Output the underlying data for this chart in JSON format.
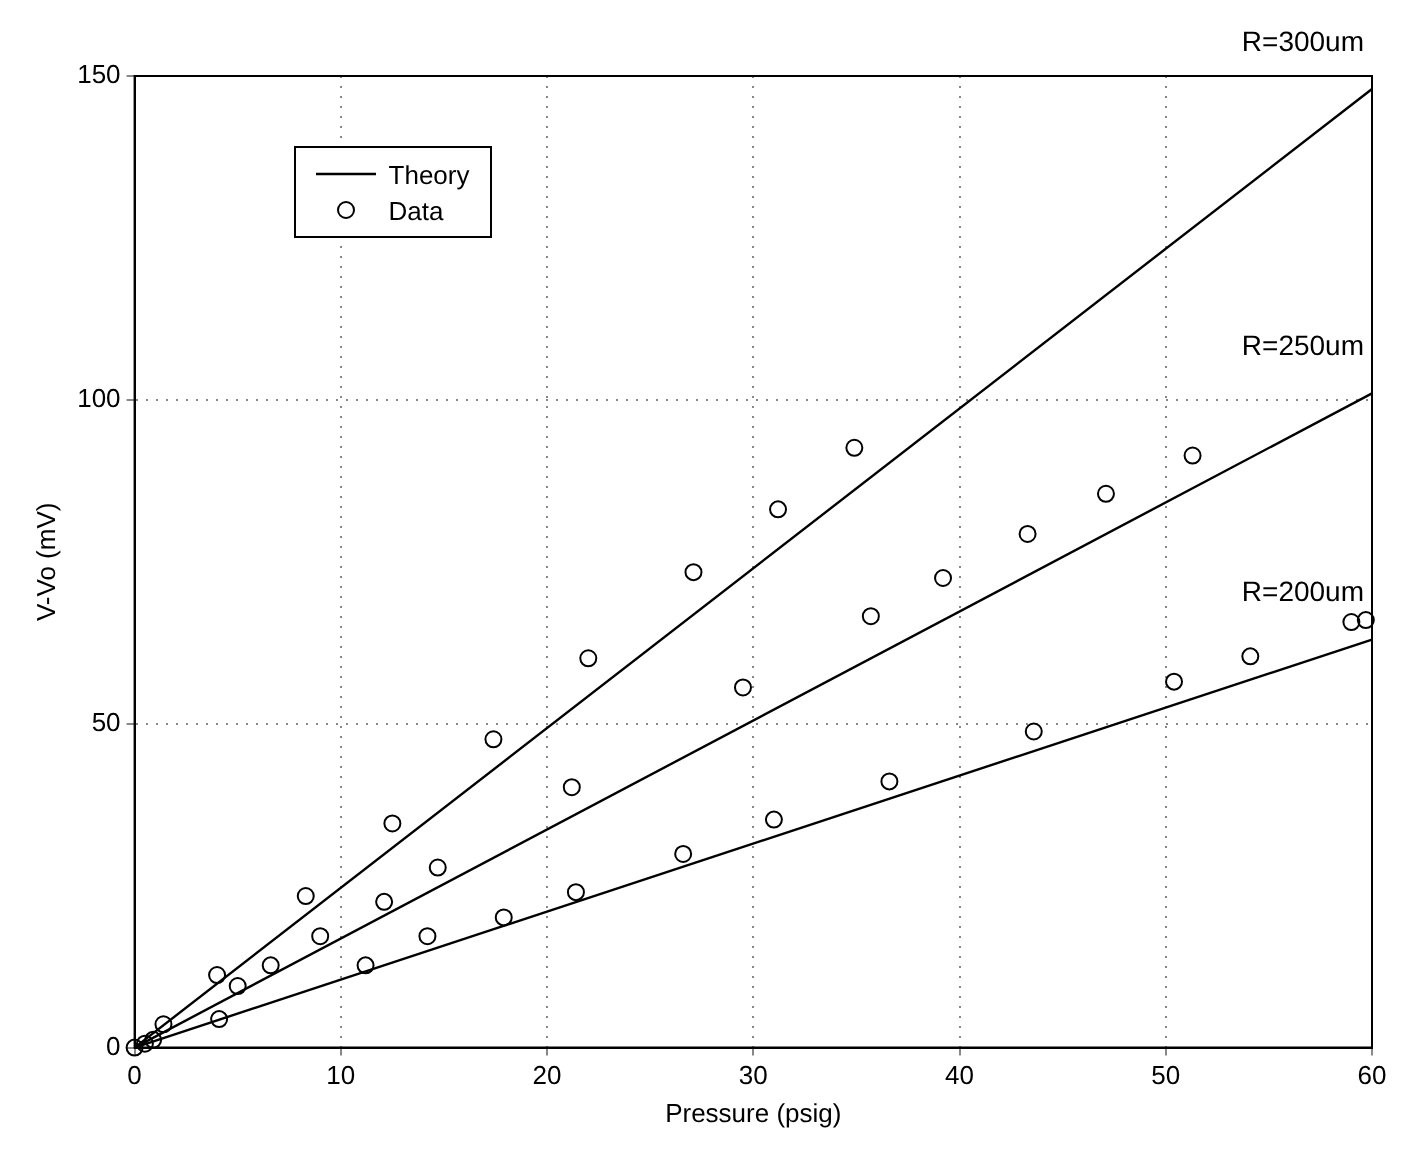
{
  "chart_data": {
    "type": "line",
    "xlabel": "Pressure (psig)",
    "ylabel": "V-Vo (mV)",
    "xlim": [
      0,
      60
    ],
    "xticks": [
      0,
      10,
      20,
      30,
      40,
      50,
      60
    ],
    "ylim": [
      0,
      150
    ],
    "yticks": [
      0,
      50,
      100,
      150
    ],
    "grid": true,
    "legend": "top left",
    "series": [
      {
        "name": "Theory",
        "type": "line",
        "color": "#000000",
        "marker": "none",
        "line_style": "solid",
        "x": [
          0,
          60
        ],
        "values": [
          0,
          148
        ]
      },
      {
        "type": "line",
        "color": "#000000",
        "marker": "none",
        "line_style": "solid",
        "x": [
          0,
          60
        ],
        "values": [
          0,
          101
        ]
      },
      {
        "type": "line",
        "color": "#000000",
        "marker": "none",
        "line_style": "solid",
        "x": [
          0,
          60
        ],
        "values": [
          0,
          63
        ]
      },
      {
        "name": "Data",
        "type": "scatter",
        "color": "#000000",
        "marker": "circle",
        "x": [
          0,
          0.5,
          0.9,
          1.4,
          4.0,
          4.1,
          5.0,
          6.6,
          8.3,
          9.0,
          11.2,
          12.1,
          12.5,
          14.2,
          14.7,
          17.4,
          17.9,
          21.2,
          21.4,
          22.0,
          26.6,
          27.1,
          29.5,
          31.0,
          31.2,
          34.9,
          35.7,
          36.6,
          39.2,
          43.3,
          43.6,
          47.1,
          50.4,
          51.3,
          54.1,
          59.0,
          59.7
        ],
        "values": [
          0,
          0.6,
          1.2,
          3.6,
          11.2,
          4.4,
          9.5,
          12.7,
          23.4,
          17.2,
          12.7,
          22.5,
          34.6,
          17.2,
          27.8,
          47.6,
          20.1,
          40.2,
          24.0,
          60.1,
          29.9,
          73.4,
          55.6,
          35.2,
          83.1,
          92.6,
          66.6,
          41.1,
          72.5,
          79.3,
          48.8,
          85.5,
          56.5,
          91.4,
          60.4,
          65.7,
          66.0
        ]
      }
    ],
    "annotations": [
      "R=300um",
      "R=250um",
      "R=200um"
    ]
  }
}
